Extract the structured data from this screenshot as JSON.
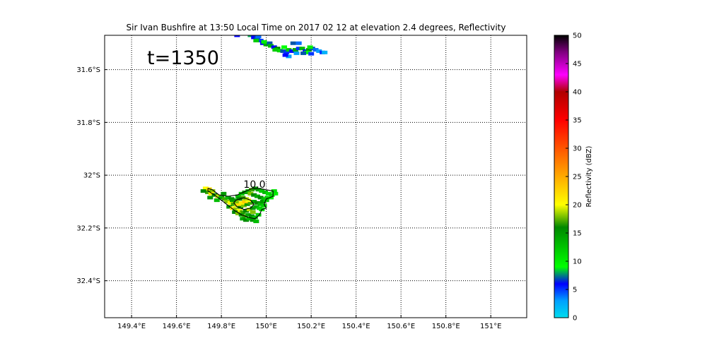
{
  "chart_data": {
    "type": "heatmap",
    "title": "Sir Ivan Bushfire at 13:50 Local Time on 2017 02 12 at elevation 2.4 degrees, Reflectivity",
    "annotation": "t=1350",
    "contour_label": "10.0",
    "xlabel": "",
    "ylabel": "",
    "xlim": [
      149.28,
      151.16
    ],
    "ylim": [
      -32.54,
      -31.47
    ],
    "grid": true,
    "x_ticks": [
      {
        "value": 149.4,
        "label": "149.4°E"
      },
      {
        "value": 149.6,
        "label": "149.6°E"
      },
      {
        "value": 149.8,
        "label": "149.8°E"
      },
      {
        "value": 150.0,
        "label": "150°E"
      },
      {
        "value": 150.2,
        "label": "150.2°E"
      },
      {
        "value": 150.4,
        "label": "150.4°E"
      },
      {
        "value": 150.6,
        "label": "150.6°E"
      },
      {
        "value": 150.8,
        "label": "150.8°E"
      },
      {
        "value": 151.0,
        "label": "151°E"
      }
    ],
    "y_ticks": [
      {
        "value": -31.6,
        "label": "31.6°S"
      },
      {
        "value": -31.8,
        "label": "31.8°S"
      },
      {
        "value": -32.0,
        "label": "32°S"
      },
      {
        "value": -32.2,
        "label": "32.2°S"
      },
      {
        "value": -32.4,
        "label": "32.4°S"
      }
    ],
    "colorbar": {
      "label": "Reflectivity (dBZ)",
      "min": 0,
      "max": 50,
      "ticks": [
        0,
        5,
        10,
        15,
        20,
        25,
        30,
        35,
        40,
        45,
        50
      ],
      "stops": [
        {
          "value": 0,
          "color": "#00ddee"
        },
        {
          "value": 3,
          "color": "#00a0ff"
        },
        {
          "value": 6,
          "color": "#0000ff"
        },
        {
          "value": 9,
          "color": "#00ff00"
        },
        {
          "value": 16,
          "color": "#008800"
        },
        {
          "value": 20,
          "color": "#ffff00"
        },
        {
          "value": 25,
          "color": "#ffaa00"
        },
        {
          "value": 30,
          "color": "#ff5500"
        },
        {
          "value": 35,
          "color": "#ff0000"
        },
        {
          "value": 40,
          "color": "#b00000"
        },
        {
          "value": 43,
          "color": "#ff00ff"
        },
        {
          "value": 47,
          "color": "#800080"
        },
        {
          "value": 50,
          "color": "#000000"
        }
      ]
    },
    "echo_regions": [
      {
        "name": "north-echo",
        "points": [
          [
            149.93,
            -31.47,
            8
          ],
          [
            149.945,
            -31.478,
            6
          ],
          [
            149.96,
            -31.48,
            7
          ],
          [
            149.975,
            -31.49,
            5
          ],
          [
            149.955,
            -31.49,
            12
          ],
          [
            149.985,
            -31.5,
            6
          ],
          [
            150.0,
            -31.505,
            14
          ],
          [
            150.015,
            -31.5,
            7
          ],
          [
            150.02,
            -31.51,
            13
          ],
          [
            150.035,
            -31.515,
            6
          ],
          [
            150.05,
            -31.52,
            16
          ],
          [
            150.06,
            -31.528,
            11
          ],
          [
            150.075,
            -31.53,
            7
          ],
          [
            150.09,
            -31.535,
            5
          ],
          [
            150.1,
            -31.525,
            12
          ],
          [
            150.115,
            -31.53,
            6
          ],
          [
            150.12,
            -31.5,
            7
          ],
          [
            150.13,
            -31.525,
            14
          ],
          [
            150.145,
            -31.52,
            5
          ],
          [
            150.16,
            -31.52,
            13
          ],
          [
            150.175,
            -31.53,
            6
          ],
          [
            150.19,
            -31.525,
            15
          ],
          [
            150.205,
            -31.52,
            7
          ],
          [
            150.22,
            -31.525,
            4
          ],
          [
            150.235,
            -31.53,
            3
          ],
          [
            150.25,
            -31.535,
            5
          ],
          [
            150.26,
            -31.535,
            2
          ],
          [
            150.18,
            -31.535,
            9
          ],
          [
            150.2,
            -31.54,
            5
          ],
          [
            150.1,
            -31.55,
            3
          ],
          [
            150.08,
            -31.515,
            9
          ],
          [
            150.04,
            -31.525,
            12
          ],
          [
            149.87,
            -31.47,
            6
          ],
          [
            149.99,
            -31.495,
            10
          ],
          [
            150.145,
            -31.5,
            4
          ],
          [
            150.165,
            -31.538,
            7
          ],
          [
            150.135,
            -31.538,
            3
          ],
          [
            150.195,
            -31.515,
            10
          ],
          [
            149.965,
            -31.475,
            4
          ],
          [
            150.085,
            -31.545,
            6
          ]
        ]
      },
      {
        "name": "fire-plume",
        "points": [
          [
            149.73,
            -32.05,
            20
          ],
          [
            149.745,
            -32.053,
            22
          ],
          [
            149.76,
            -32.06,
            18
          ],
          [
            149.74,
            -32.065,
            17
          ],
          [
            149.755,
            -32.07,
            21
          ],
          [
            149.77,
            -32.075,
            16
          ],
          [
            149.785,
            -32.08,
            19
          ],
          [
            149.75,
            -32.085,
            15
          ],
          [
            149.8,
            -32.085,
            14
          ],
          [
            149.815,
            -32.09,
            17
          ],
          [
            149.83,
            -32.085,
            13
          ],
          [
            149.845,
            -32.09,
            16
          ],
          [
            149.86,
            -32.095,
            14
          ],
          [
            149.875,
            -32.08,
            13
          ],
          [
            149.89,
            -32.07,
            12
          ],
          [
            149.905,
            -32.065,
            15
          ],
          [
            149.92,
            -32.06,
            13
          ],
          [
            149.935,
            -32.055,
            17
          ],
          [
            149.95,
            -32.05,
            15
          ],
          [
            149.965,
            -32.055,
            14
          ],
          [
            149.98,
            -32.06,
            12
          ],
          [
            149.995,
            -32.065,
            13
          ],
          [
            150.01,
            -32.07,
            11
          ],
          [
            150.025,
            -32.075,
            12
          ],
          [
            150.04,
            -32.07,
            10
          ],
          [
            149.93,
            -32.07,
            18
          ],
          [
            149.945,
            -32.075,
            16
          ],
          [
            149.96,
            -32.08,
            14
          ],
          [
            149.975,
            -32.085,
            16
          ],
          [
            149.99,
            -32.09,
            13
          ],
          [
            150.005,
            -32.085,
            12
          ],
          [
            149.825,
            -32.1,
            18
          ],
          [
            149.84,
            -32.105,
            20
          ],
          [
            149.855,
            -32.11,
            17
          ],
          [
            149.87,
            -32.115,
            19
          ],
          [
            149.885,
            -32.12,
            16
          ],
          [
            149.9,
            -32.115,
            18
          ],
          [
            149.915,
            -32.11,
            15
          ],
          [
            149.93,
            -32.105,
            17
          ],
          [
            149.945,
            -32.1,
            14
          ],
          [
            149.96,
            -32.105,
            16
          ],
          [
            149.975,
            -32.11,
            13
          ],
          [
            149.99,
            -32.115,
            12
          ],
          [
            149.835,
            -32.12,
            15
          ],
          [
            149.85,
            -32.125,
            21
          ],
          [
            149.865,
            -32.13,
            18
          ],
          [
            149.88,
            -32.135,
            20
          ],
          [
            149.895,
            -32.14,
            17
          ],
          [
            149.91,
            -32.135,
            16
          ],
          [
            149.925,
            -32.13,
            19
          ],
          [
            149.94,
            -32.125,
            15
          ],
          [
            149.955,
            -32.12,
            14
          ],
          [
            149.97,
            -32.125,
            12
          ],
          [
            149.86,
            -32.14,
            16
          ],
          [
            149.875,
            -32.145,
            18
          ],
          [
            149.89,
            -32.15,
            15
          ],
          [
            149.905,
            -32.155,
            17
          ],
          [
            149.92,
            -32.15,
            14
          ],
          [
            149.935,
            -32.155,
            16
          ],
          [
            149.95,
            -32.16,
            13
          ],
          [
            149.965,
            -32.15,
            12
          ],
          [
            149.895,
            -32.165,
            14
          ],
          [
            149.91,
            -32.17,
            16
          ],
          [
            149.925,
            -32.165,
            13
          ],
          [
            149.94,
            -32.17,
            15
          ],
          [
            149.955,
            -32.175,
            13
          ],
          [
            149.875,
            -32.11,
            22
          ],
          [
            149.89,
            -32.105,
            21
          ],
          [
            149.905,
            -32.1,
            23
          ],
          [
            149.92,
            -32.095,
            20
          ],
          [
            149.91,
            -32.09,
            19
          ],
          [
            149.895,
            -32.085,
            17
          ],
          [
            149.88,
            -32.09,
            16
          ],
          [
            149.865,
            -32.1,
            18
          ],
          [
            149.85,
            -32.095,
            15
          ],
          [
            149.72,
            -32.06,
            16
          ],
          [
            149.78,
            -32.095,
            13
          ],
          [
            149.81,
            -32.07,
            15
          ],
          [
            150.035,
            -32.06,
            11
          ],
          [
            150.02,
            -32.085,
            10
          ],
          [
            149.98,
            -32.13,
            11
          ],
          [
            149.985,
            -32.1,
            15
          ],
          [
            149.94,
            -32.14,
            18
          ],
          [
            150.0,
            -32.095,
            12
          ]
        ]
      }
    ],
    "contours": [
      {
        "name": "contour-10",
        "points": [
          [
            149.74,
            -32.05
          ],
          [
            149.76,
            -32.055
          ],
          [
            149.79,
            -32.075
          ],
          [
            149.83,
            -32.08
          ],
          [
            149.87,
            -32.075
          ],
          [
            149.91,
            -32.06
          ],
          [
            149.94,
            -32.05
          ],
          [
            149.98,
            -32.052
          ],
          [
            150.03,
            -32.06
          ],
          [
            150.03,
            -32.08
          ],
          [
            150.0,
            -32.09
          ],
          [
            149.99,
            -32.11
          ],
          [
            150.0,
            -32.125
          ],
          [
            149.98,
            -32.13
          ],
          [
            149.97,
            -32.15
          ],
          [
            149.95,
            -32.165
          ],
          [
            149.92,
            -32.16
          ],
          [
            149.89,
            -32.15
          ],
          [
            149.86,
            -32.135
          ],
          [
            149.83,
            -32.115
          ],
          [
            149.8,
            -32.095
          ],
          [
            149.77,
            -32.075
          ],
          [
            149.74,
            -32.06
          ],
          [
            149.74,
            -32.05
          ]
        ]
      },
      {
        "name": "contour-15",
        "points": [
          [
            149.865,
            -32.095
          ],
          [
            149.9,
            -32.085
          ],
          [
            149.93,
            -32.095
          ],
          [
            149.945,
            -32.11
          ],
          [
            149.93,
            -32.125
          ],
          [
            149.9,
            -32.13
          ],
          [
            149.87,
            -32.12
          ],
          [
            149.855,
            -32.105
          ],
          [
            149.865,
            -32.095
          ]
        ]
      }
    ]
  }
}
